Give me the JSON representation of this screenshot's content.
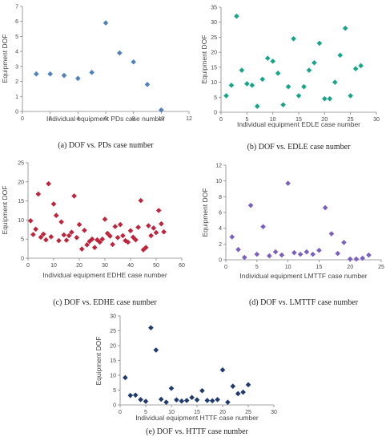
{
  "chart_data": [
    {
      "type": "scatter",
      "caption": "(a) DOF vs. PDs case number",
      "xlabel": "Individual equipment PDs case number",
      "ylabel": "Equipment DOF",
      "xlim": [
        0,
        12
      ],
      "ylim": [
        0,
        7
      ],
      "xticks": [
        0,
        2,
        4,
        6,
        8,
        10,
        12
      ],
      "yticks": [
        0,
        1,
        2,
        3,
        4,
        5,
        6,
        7
      ],
      "marker_color": "#4f81bd",
      "points": [
        [
          1,
          2.5
        ],
        [
          2,
          2.5
        ],
        [
          3,
          2.4
        ],
        [
          4,
          2.2
        ],
        [
          5,
          2.6
        ],
        [
          6,
          5.9
        ],
        [
          7,
          3.9
        ],
        [
          8,
          3.3
        ],
        [
          9,
          1.8
        ],
        [
          10,
          0.1
        ]
      ]
    },
    {
      "type": "scatter",
      "caption": "(b) DOF vs. EDLE case number",
      "xlabel": "Individual equipment EDLE case number",
      "ylabel": "Equipment DOF",
      "xlim": [
        0,
        30
      ],
      "ylim": [
        0,
        35
      ],
      "xticks": [
        0,
        5,
        10,
        15,
        20,
        25,
        30
      ],
      "yticks": [
        0,
        5,
        10,
        15,
        20,
        25,
        30,
        35
      ],
      "marker_color": "#17a589",
      "points": [
        [
          1,
          5.5
        ],
        [
          2,
          9
        ],
        [
          3,
          32
        ],
        [
          4,
          14
        ],
        [
          5,
          9.5
        ],
        [
          6,
          9
        ],
        [
          7,
          2
        ],
        [
          8,
          11
        ],
        [
          9,
          18
        ],
        [
          10,
          17
        ],
        [
          11,
          13
        ],
        [
          12,
          2.5
        ],
        [
          13,
          8.5
        ],
        [
          14,
          24.5
        ],
        [
          15,
          5.5
        ],
        [
          16,
          8.5
        ],
        [
          17,
          14
        ],
        [
          18,
          16.5
        ],
        [
          19,
          23
        ],
        [
          20,
          4.5
        ],
        [
          21,
          4.5
        ],
        [
          22,
          10
        ],
        [
          23,
          19
        ],
        [
          24,
          28
        ],
        [
          25,
          5.5
        ],
        [
          26,
          14.5
        ],
        [
          27,
          15.5
        ]
      ]
    },
    {
      "type": "scatter",
      "caption": "(c) DOF vs. EDHE case number",
      "xlabel": "Individual equipment EDHE case number",
      "ylabel": "Equipment DOF",
      "xlim": [
        0,
        60
      ],
      "ylim": [
        0,
        25
      ],
      "xticks": [
        0,
        10,
        20,
        30,
        40,
        50,
        60
      ],
      "yticks": [
        0,
        5,
        10,
        15,
        20,
        25
      ],
      "marker_color": "#c0243a",
      "points": [
        [
          1,
          9.8
        ],
        [
          2,
          6.2
        ],
        [
          3,
          7.6
        ],
        [
          4,
          16.8
        ],
        [
          5,
          5.5
        ],
        [
          6,
          6.3
        ],
        [
          7,
          4.8
        ],
        [
          8,
          19.5
        ],
        [
          9,
          5.6
        ],
        [
          10,
          14.2
        ],
        [
          11,
          11.2
        ],
        [
          12,
          4.6
        ],
        [
          13,
          9.5
        ],
        [
          14,
          6.1
        ],
        [
          15,
          4.7
        ],
        [
          16,
          5.9
        ],
        [
          17,
          6.8
        ],
        [
          18,
          16.3
        ],
        [
          19,
          5.4
        ],
        [
          20,
          8.8
        ],
        [
          21,
          2.4
        ],
        [
          22,
          7.3
        ],
        [
          23,
          3.5
        ],
        [
          24,
          4.4
        ],
        [
          25,
          5
        ],
        [
          26,
          2.8
        ],
        [
          27,
          4.8
        ],
        [
          28,
          4.2
        ],
        [
          29,
          5
        ],
        [
          30,
          10.2
        ],
        [
          31,
          6.5
        ],
        [
          32,
          5.8
        ],
        [
          33,
          3.6
        ],
        [
          34,
          8.3
        ],
        [
          35,
          5.4
        ],
        [
          36,
          8.8
        ],
        [
          37,
          5.9
        ],
        [
          38,
          4.6
        ],
        [
          39,
          4.2
        ],
        [
          40,
          7.2
        ],
        [
          41,
          5.5
        ],
        [
          42,
          4.8
        ],
        [
          43,
          8.1
        ],
        [
          44,
          15.1
        ],
        [
          45,
          2.2
        ],
        [
          46,
          2.8
        ],
        [
          47,
          8.5
        ],
        [
          48,
          5.9
        ],
        [
          49,
          7.9
        ],
        [
          50,
          6.7
        ],
        [
          51,
          12.5
        ],
        [
          52,
          9
        ],
        [
          53,
          6.9
        ]
      ]
    },
    {
      "type": "scatter",
      "caption": "(d) DOF vs. LMTTF case number",
      "xlabel": "Individual equipment LMTTF case number",
      "ylabel": "Equipment DOF",
      "xlim": [
        0,
        25
      ],
      "ylim": [
        0,
        12
      ],
      "xticks": [
        0,
        5,
        10,
        15,
        20,
        25
      ],
      "yticks": [
        0,
        2,
        4,
        6,
        8,
        10,
        12
      ],
      "marker_color": "#7b5fbf",
      "points": [
        [
          1,
          2.9
        ],
        [
          2,
          1.3
        ],
        [
          3,
          0.3
        ],
        [
          4,
          6.9
        ],
        [
          5,
          0.7
        ],
        [
          6,
          4.2
        ],
        [
          7,
          0.5
        ],
        [
          8,
          1
        ],
        [
          9,
          0.6
        ],
        [
          10,
          9.7
        ],
        [
          11,
          0.9
        ],
        [
          12,
          0.7
        ],
        [
          13,
          1
        ],
        [
          14,
          0.7
        ],
        [
          15,
          1.2
        ],
        [
          16,
          6.6
        ],
        [
          17,
          3.3
        ],
        [
          18,
          0.8
        ],
        [
          19,
          2.2
        ],
        [
          20,
          0.1
        ],
        [
          21,
          0.1
        ],
        [
          22,
          0.2
        ],
        [
          23,
          0.6
        ]
      ]
    },
    {
      "type": "scatter",
      "caption": "(e) DOF vs. HTTF case number",
      "xlabel": "Individual equipment HTTF case number",
      "ylabel": "Equipment DOF",
      "xlim": [
        0,
        30
      ],
      "ylim": [
        0,
        30
      ],
      "xticks": [
        0,
        5,
        10,
        15,
        20,
        25,
        30
      ],
      "yticks": [
        0,
        5,
        10,
        15,
        20,
        25,
        30
      ],
      "marker_color": "#1f3a6e",
      "points": [
        [
          1,
          9.2
        ],
        [
          2,
          3.2
        ],
        [
          3,
          3.3
        ],
        [
          4,
          1.8
        ],
        [
          5,
          1.2
        ],
        [
          6,
          26
        ],
        [
          7,
          18.5
        ],
        [
          8,
          1.9
        ],
        [
          9,
          0.9
        ],
        [
          10,
          5.6
        ],
        [
          11,
          1.7
        ],
        [
          12,
          1.3
        ],
        [
          13,
          1.5
        ],
        [
          14,
          2.5
        ],
        [
          15,
          1.7
        ],
        [
          16,
          4.8
        ],
        [
          17,
          1.5
        ],
        [
          18,
          1.4
        ],
        [
          19,
          1.8
        ],
        [
          20,
          11.8
        ],
        [
          21,
          0.9
        ],
        [
          22,
          6.3
        ],
        [
          23,
          3.8
        ],
        [
          24,
          4.3
        ],
        [
          25,
          6.8
        ]
      ]
    }
  ]
}
